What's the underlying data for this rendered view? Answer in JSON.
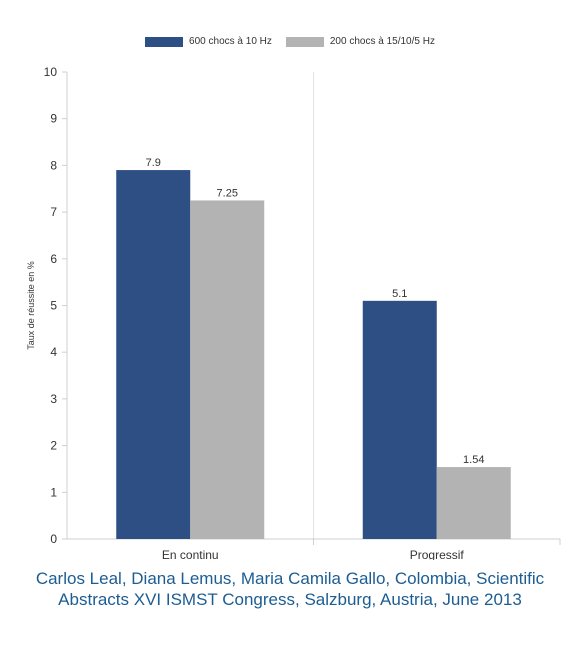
{
  "chart_data": {
    "type": "bar",
    "categories": [
      "En continu",
      "Progressif"
    ],
    "series": [
      {
        "name": "600 chocs à 10 Hz",
        "values": [
          7.9,
          5.1
        ],
        "labels": [
          "7.9",
          "5.1"
        ],
        "color": "#2e4f84"
      },
      {
        "name": "200 chocs à 15/10/5 Hz",
        "values": [
          7.25,
          1.54
        ],
        "labels": [
          "7.25",
          "1.54"
        ],
        "color": "#b3b3b3"
      }
    ],
    "ylabel": "Taux de réussite en %",
    "ylim": [
      0,
      10
    ],
    "yticks": [
      "0",
      "1",
      "2",
      "3",
      "4",
      "5",
      "6",
      "7",
      "8",
      "9",
      "10"
    ],
    "grid": "vertical category separators",
    "legend_position": "top-center"
  },
  "caption": "Carlos Leal, Diana Lemus, Maria Camila Gallo, Colombia, Scientific Abstracts XVI ISMST Congress, Salzburg, Austria, June 2013"
}
